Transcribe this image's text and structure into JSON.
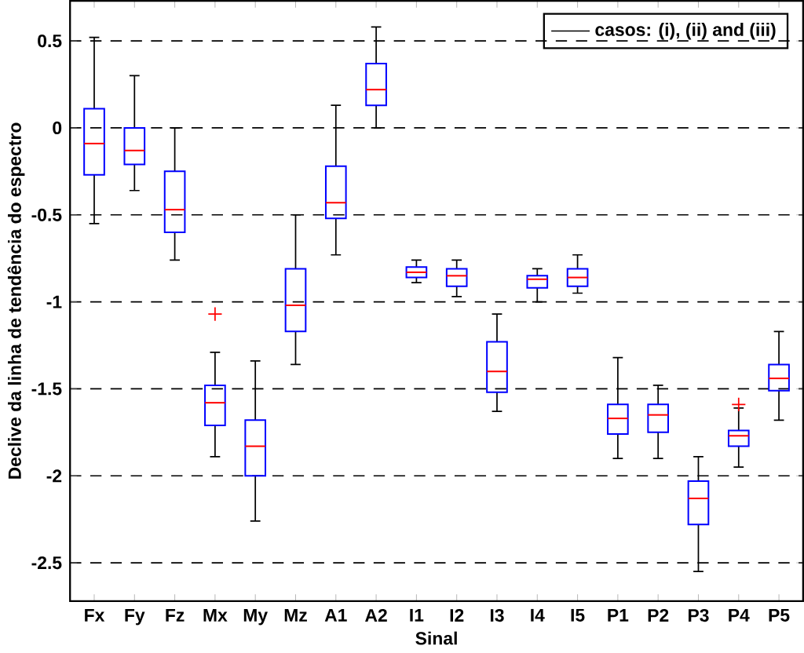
{
  "chart_data": {
    "type": "box",
    "xlabel": "Sinal",
    "ylabel": "Declive da linha de tendência do espectro",
    "categories": [
      "Fx",
      "Fy",
      "Fz",
      "Mx",
      "My",
      "Mz",
      "A1",
      "A2",
      "I1",
      "I2",
      "I3",
      "I4",
      "I5",
      "P1",
      "P2",
      "P3",
      "P4",
      "P5"
    ],
    "series": [
      {
        "name": "casos: (i), (ii) and (iii)",
        "color": "#0000ff",
        "boxes": [
          {
            "low": -0.55,
            "q1": -0.27,
            "median": -0.09,
            "q3": 0.11,
            "high": 0.52
          },
          {
            "low": -0.36,
            "q1": -0.21,
            "median": -0.13,
            "q3": 0,
            "high": 0.3
          },
          {
            "low": -0.76,
            "q1": -0.6,
            "median": -0.47,
            "q3": -0.25,
            "high": 0
          },
          {
            "low": -1.89,
            "q1": -1.71,
            "median": -1.58,
            "q3": -1.48,
            "high": -1.29,
            "outliers": [
              -1.07
            ]
          },
          {
            "low": -2.26,
            "q1": -2.0,
            "median": -1.83,
            "q3": -1.68,
            "high": -1.34
          },
          {
            "low": -1.36,
            "q1": -1.17,
            "median": -1.02,
            "q3": -0.81,
            "high": -0.5
          },
          {
            "low": -0.73,
            "q1": -0.52,
            "median": -0.43,
            "q3": -0.22,
            "high": 0.13
          },
          {
            "low": 0,
            "q1": 0.13,
            "median": 0.22,
            "q3": 0.37,
            "high": 0.58
          },
          {
            "low": -0.89,
            "q1": -0.86,
            "median": -0.83,
            "q3": -0.8,
            "high": -0.76
          },
          {
            "low": -0.97,
            "q1": -0.91,
            "median": -0.85,
            "q3": -0.81,
            "high": -0.76
          },
          {
            "low": -1.63,
            "q1": -1.52,
            "median": -1.4,
            "q3": -1.23,
            "high": -1.07
          },
          {
            "low": -1.0,
            "q1": -0.92,
            "median": -0.87,
            "q3": -0.85,
            "high": -0.81
          },
          {
            "low": -0.95,
            "q1": -0.91,
            "median": -0.86,
            "q3": -0.81,
            "high": -0.73
          },
          {
            "low": -1.9,
            "q1": -1.76,
            "median": -1.67,
            "q3": -1.59,
            "high": -1.32
          },
          {
            "low": -1.9,
            "q1": -1.75,
            "median": -1.65,
            "q3": -1.59,
            "high": -1.48
          },
          {
            "low": -2.55,
            "q1": -2.28,
            "median": -2.13,
            "q3": -2.03,
            "high": -1.89
          },
          {
            "low": -1.95,
            "q1": -1.83,
            "median": -1.77,
            "q3": -1.74,
            "high": -1.61,
            "outliers": [
              -1.59
            ]
          },
          {
            "low": -1.68,
            "q1": -1.51,
            "median": -1.44,
            "q3": -1.36,
            "high": -1.17
          }
        ]
      }
    ],
    "ylim": [
      -2.72,
      0.73
    ],
    "yticks": [
      -2.5,
      -2,
      -1.5,
      -1,
      -0.5,
      0,
      0.5
    ],
    "grid": "y",
    "legend": "top right"
  }
}
